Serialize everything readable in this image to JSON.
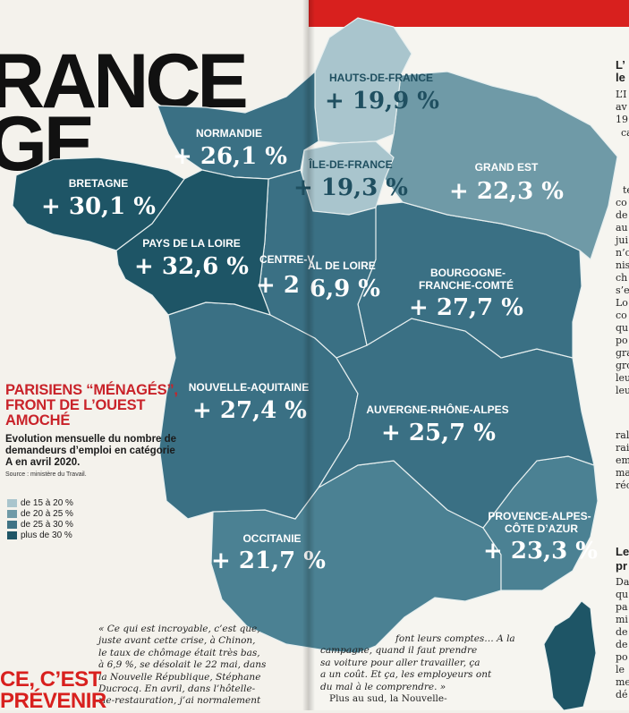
{
  "headline": {
    "line1": "RANCE",
    "line2": "GE"
  },
  "legend": {
    "title": "PARISIENS “MÉNAGÉS”, FRONT DE L’OUEST AMOCHÉ",
    "subtitle": "Evolution mensuelle du nombre de demandeurs d’emploi en catégorie A en avril 2020.",
    "source": "Source : ministère du Travail.",
    "items": [
      {
        "label": "de 15 à 20 %",
        "color": "#a9c5cd"
      },
      {
        "label": "de 20 à 25 %",
        "color": "#6f9aa7"
      },
      {
        "label": "de 25 à 30 %",
        "color": "#3f7385"
      },
      {
        "label": "plus de 30 %",
        "color": "#1e5566"
      }
    ]
  },
  "regions": [
    {
      "name": "HAUTS-DE-FRANCE",
      "value": "+ 19,9 %",
      "class": "15-20"
    },
    {
      "name": "NORMANDIE",
      "value": "+ 26,1 %",
      "class": "25-30"
    },
    {
      "name": "ÎLE-DE-FRANCE",
      "value": "+ 19,3 %",
      "class": "15-20"
    },
    {
      "name": "GRAND EST",
      "value": "+ 22,3 %",
      "class": "20-25"
    },
    {
      "name": "BRETAGNE",
      "value": "+ 30,1 %",
      "class": "30+"
    },
    {
      "name": "PAYS DE LA LOIRE",
      "value": "+ 32,6 %",
      "class": "30+"
    },
    {
      "name": "CENTRE-VAL DE LOIRE",
      "value": "+ 26,9 %",
      "class": "25-30"
    },
    {
      "name": "BOURGOGNE-FRANCHE-COMTÉ",
      "value": "+ 27,7 %",
      "class": "25-30"
    },
    {
      "name": "NOUVELLE-AQUITAINE",
      "value": "+ 27,4 %",
      "class": "25-30"
    },
    {
      "name": "AUVERGNE-RHÔNE-ALPES",
      "value": "+ 25,7 %",
      "class": "25-30"
    },
    {
      "name": "OCCITANIE",
      "value": "+ 21,7 %",
      "class": "20-25"
    },
    {
      "name": "PROVENCE-ALPES-CÔTE D’AZUR",
      "value": "+ 23,3 %",
      "class": "20-25"
    }
  ],
  "labels": {
    "hdf_name": "HAUTS-DE-FRANCE",
    "norm_name": "NORMANDIE",
    "idf_name": "ÎLE-DE-FRANCE",
    "ge_name": "GRAND EST",
    "bre_name": "BRETAGNE",
    "pdl_name": "PAYS DE LA LOIRE",
    "cvl_name_a": "CENTRE-V",
    "cvl_name_b": "AL DE LOIRE",
    "bfc_name_1": "BOURGOGNE-",
    "bfc_name_2": "FRANCHE-COMTÉ",
    "na_name": "NOUVELLE-AQUITAINE",
    "ara_name": "AUVERGNE-RHÔNE-ALPES",
    "occ_name": "OCCITANIE",
    "paca_name_1": "PROVENCE-ALPES-",
    "paca_name_2": "CÔTE D’AZUR",
    "cvl_value_a": "+ 2",
    "cvl_value_b": "6,9 %"
  },
  "article": {
    "quote": [
      "« Ce qui est incroyable, c’est que,",
      "juste avant cette crise, à Chinon,",
      "le taux de chômage était très bas,",
      "à 6,9 %, se désolait le 22 mai, dans",
      "la Nouvelle République, Stéphane",
      "Ducrocq. En avril, dans l’hôtelle-",
      "rie-restauration, j’ai normalement"
    ],
    "quote2": [
      "font leurs comptes… A la",
      "campagne, quand il faut prendre",
      "sa voiture pour aller travailler, ça",
      "a un coût. Et ça, les employeurs ont",
      "du mal à le comprendre. »",
      "Plus au sud, la Nouvelle-"
    ],
    "bottom_red": [
      "CE, C’EST",
      "PRÉVENIR"
    ]
  },
  "right_column": {
    "snips": [
      "L’",
      "le",
      "L’I",
      "av",
      "19",
      "ca",
      "te",
      "co",
      "de",
      "au",
      "jui",
      "n’o",
      "nis",
      "ch",
      "s’e",
      "Lo",
      "co",
      "qu",
      "po",
      "gra",
      "gro",
      "leu",
      "leu",
      "ral",
      "rai",
      "em",
      "ma",
      "réc",
      "Le",
      "pr",
      "Da",
      "qu",
      "pa",
      "mi",
      "de",
      "de",
      "po",
      "le",
      "me",
      "dé"
    ]
  }
}
